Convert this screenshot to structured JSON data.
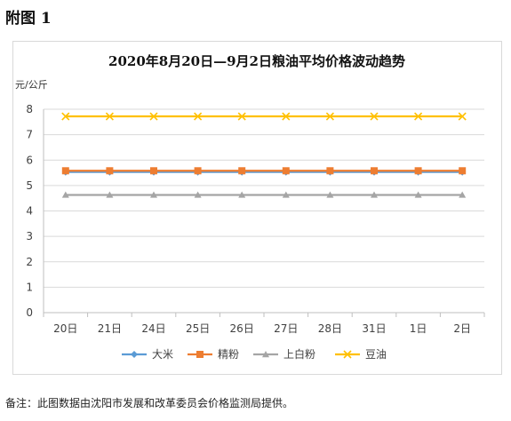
{
  "page": {
    "heading": "附图 1",
    "footnote": "备注：此图数据由沈阳市发展和改革委员会价格监测局提供。"
  },
  "chart_data": {
    "type": "line",
    "title": "2020年8月20日—9月2日粮油平均价格波动趋势",
    "ylabel": "元/公斤",
    "xlabel": "",
    "ylim": [
      0,
      8
    ],
    "yticks": [
      0,
      1,
      2,
      3,
      4,
      5,
      6,
      7,
      8
    ],
    "grid": true,
    "legend": "bottom",
    "categories": [
      "20日",
      "21日",
      "24日",
      "25日",
      "26日",
      "27日",
      "28日",
      "31日",
      "1日",
      "2日"
    ],
    "series": [
      {
        "name": "大米",
        "marker": "diamond",
        "color": "#5b9bd5",
        "values": [
          5.53,
          5.53,
          5.53,
          5.53,
          5.53,
          5.53,
          5.53,
          5.53,
          5.53,
          5.53
        ]
      },
      {
        "name": "精粉",
        "marker": "square",
        "color": "#ed7d31",
        "values": [
          5.58,
          5.58,
          5.58,
          5.58,
          5.58,
          5.58,
          5.58,
          5.58,
          5.58,
          5.58
        ]
      },
      {
        "name": "上白粉",
        "marker": "triangle",
        "color": "#a5a5a5",
        "values": [
          4.63,
          4.63,
          4.63,
          4.63,
          4.63,
          4.63,
          4.63,
          4.63,
          4.63,
          4.63
        ]
      },
      {
        "name": "豆油",
        "marker": "x",
        "color": "#ffc000",
        "values": [
          7.72,
          7.72,
          7.72,
          7.72,
          7.72,
          7.72,
          7.72,
          7.72,
          7.72,
          7.72
        ]
      }
    ]
  }
}
